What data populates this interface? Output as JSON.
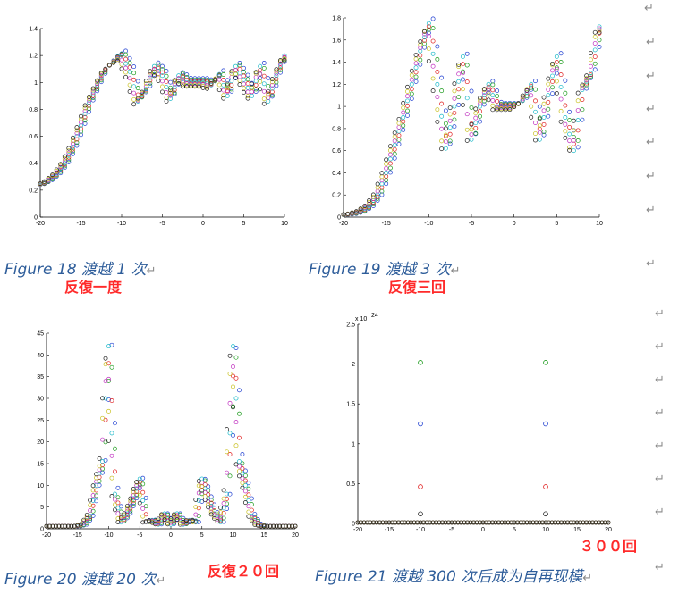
{
  "captions": {
    "fig18": "Figure 18 渡越 1 次",
    "fig19": "Figure 19 渡越 3 次",
    "fig20": "Figure 20 渡越 20 次",
    "fig21": "Figure 21 渡越 300 次后成为自再现模"
  },
  "annotations": {
    "a18": "反復一度",
    "a19": "反復三回",
    "a20": "反復２０回",
    "a21": "３００回"
  },
  "paragraph_mark": "↵",
  "chart_data": [
    {
      "type": "scatter",
      "xlim": [
        -20,
        10
      ],
      "ylim": [
        0,
        1.4
      ],
      "xticks": [
        -20,
        -15,
        -10,
        -5,
        0,
        5,
        10
      ],
      "yticks": [
        0,
        0.2,
        0.4,
        0.6,
        0.8,
        1,
        1.2,
        1.4
      ],
      "ytick_labels": [
        "0",
        "0.2",
        "0.4",
        "0.6",
        "0.8",
        "1",
        "1.2",
        "1.4"
      ],
      "x": [
        -20,
        -19,
        -18,
        -17,
        -16,
        -15,
        -14,
        -13,
        -12,
        -11,
        -10,
        -9,
        -8,
        -7,
        -6,
        -5,
        -4,
        -3,
        -2,
        -1,
        0,
        1,
        2,
        3,
        4,
        5,
        6,
        7,
        8,
        9,
        10
      ],
      "y": [
        0.24,
        0.27,
        0.32,
        0.4,
        0.52,
        0.68,
        0.85,
        0.98,
        1.1,
        1.16,
        1.2,
        1.08,
        0.86,
        0.95,
        1.12,
        1.05,
        0.88,
        1.05,
        1.0,
        1.0,
        1.0,
        0.98,
        1.06,
        0.9,
        1.12,
        1.02,
        0.9,
        1.12,
        0.86,
        1.05,
        1.2
      ]
    },
    {
      "type": "scatter",
      "xlim": [
        -20,
        10
      ],
      "ylim": [
        0,
        1.8
      ],
      "xticks": [
        -20,
        -15,
        -10,
        -5,
        0,
        5,
        10
      ],
      "yticks": [
        0,
        0.2,
        0.4,
        0.6,
        0.8,
        1,
        1.2,
        1.4,
        1.6,
        1.8
      ],
      "ytick_labels": [
        "0",
        "0.2",
        "0.4",
        "0.6",
        "0.8",
        "1",
        "1.2",
        "1.4",
        "1.6",
        "1.8"
      ],
      "x": [
        -20,
        -19,
        -18,
        -17,
        -16,
        -15,
        -14,
        -13,
        -12,
        -11,
        -10,
        -9,
        -8,
        -7,
        -6,
        -5,
        -4,
        -3,
        -2,
        -1,
        0,
        1,
        2,
        3,
        4,
        5,
        6,
        7,
        8,
        9,
        10
      ],
      "y": [
        0.02,
        0.03,
        0.05,
        0.1,
        0.2,
        0.4,
        0.65,
        0.9,
        1.2,
        1.5,
        1.75,
        1.2,
        0.62,
        1.0,
        1.45,
        0.7,
        1.0,
        1.2,
        1.0,
        1.0,
        1.0,
        1.05,
        1.2,
        0.7,
        1.1,
        1.45,
        0.9,
        0.6,
        1.15,
        1.3,
        1.72
      ]
    },
    {
      "type": "scatter",
      "xlim": [
        -20,
        20
      ],
      "ylim": [
        0,
        45
      ],
      "xticks": [
        -20,
        -15,
        -10,
        -5,
        0,
        5,
        10,
        15,
        20
      ],
      "yticks": [
        0,
        5,
        10,
        15,
        20,
        25,
        30,
        35,
        40,
        45
      ],
      "ytick_labels": [
        "0",
        "5",
        "10",
        "15",
        "20",
        "25",
        "30",
        "35",
        "40",
        "45"
      ],
      "x": [
        -20,
        -19,
        -18,
        -17,
        -16,
        -15,
        -14,
        -13,
        -12,
        -11,
        -10.5,
        -10,
        -9.5,
        -9,
        -8,
        -7,
        -6,
        -5,
        -4,
        -3,
        -2,
        -1,
        0,
        1,
        2,
        3,
        4,
        5,
        6,
        7,
        8,
        9,
        9.5,
        10,
        10.5,
        11,
        12,
        13,
        14,
        15,
        16,
        17,
        18,
        19,
        20
      ],
      "y": [
        0.6,
        0.6,
        0.6,
        0.6,
        0.6,
        0.6,
        1.0,
        3.0,
        10.0,
        15.5,
        30.0,
        42.0,
        22.0,
        8.0,
        1.5,
        3.5,
        7.0,
        11.5,
        1.5,
        2.0,
        1.0,
        3.5,
        1.0,
        3.5,
        1.0,
        2.0,
        1.5,
        11.5,
        7.0,
        3.5,
        1.5,
        8.0,
        22.0,
        42.0,
        30.0,
        15.5,
        10.0,
        3.0,
        1.0,
        0.6,
        0.6,
        0.6,
        0.6,
        0.6,
        0.6
      ]
    },
    {
      "type": "scatter",
      "xlim": [
        -20,
        20
      ],
      "ylim": [
        0,
        2.5
      ],
      "exponent_label": "x 10",
      "exponent_power": "24",
      "xticks": [
        -20,
        -15,
        -10,
        -5,
        0,
        5,
        10,
        15,
        20
      ],
      "yticks": [
        0,
        0.5,
        1,
        1.5,
        2,
        2.5
      ],
      "ytick_labels": [
        "0",
        "0.5",
        "1",
        "1.5",
        "2",
        "2.5"
      ],
      "x": [
        -10,
        -10,
        -10,
        -10,
        10,
        10,
        10,
        10
      ],
      "y": [
        2.02,
        1.25,
        0.46,
        0.12,
        2.02,
        1.25,
        0.46,
        0.12
      ]
    }
  ]
}
